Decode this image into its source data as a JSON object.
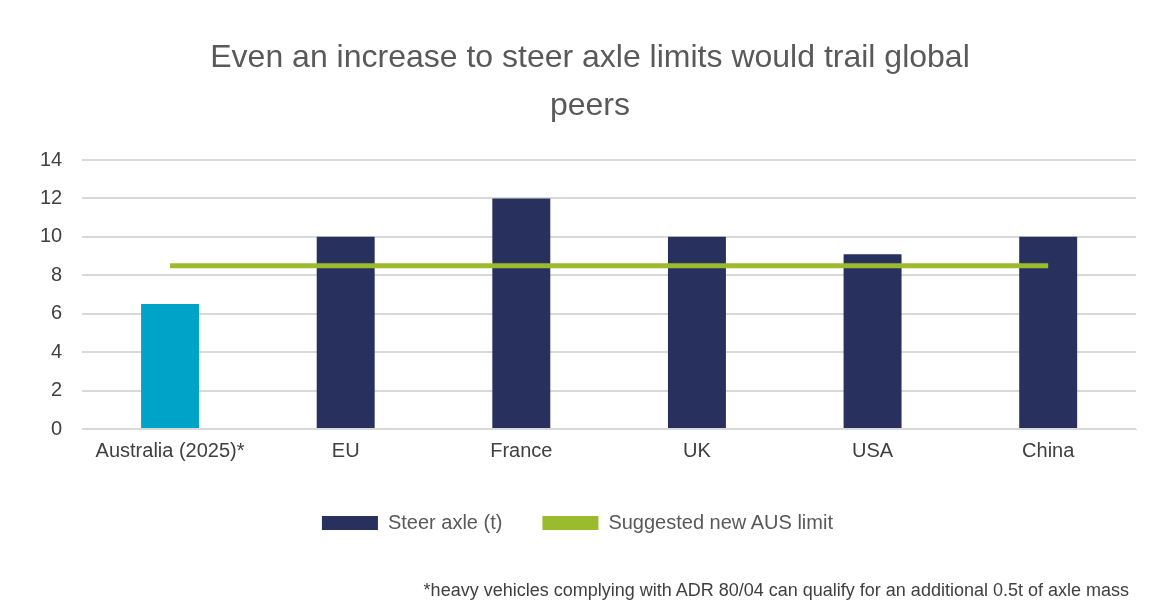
{
  "chart_data": {
    "type": "bar",
    "title": "Even an increase to steer axle limits would trail global peers",
    "categories": [
      "Australia (2025)*",
      "EU",
      "France",
      "UK",
      "USA",
      "China"
    ],
    "series": [
      {
        "name": "Steer axle (t)",
        "color": "#28305e",
        "colors": [
          "#00a3c8",
          "#28305e",
          "#28305e",
          "#28305e",
          "#28305e",
          "#28305e"
        ],
        "values": [
          6.5,
          10,
          12,
          10,
          9.1,
          10
        ]
      },
      {
        "name": "Suggested new AUS limit",
        "type": "line",
        "color": "#9bbb2e",
        "values": [
          8.5,
          8.5,
          8.5,
          8.5,
          8.5,
          8.5
        ]
      }
    ],
    "ylim": [
      0,
      14
    ],
    "yticks": [
      0,
      2,
      4,
      6,
      8,
      10,
      12,
      14
    ],
    "grid": "y",
    "legend": "bottom",
    "marker": "none",
    "annotations": [
      "*heavy vehicles complying with ADR 80/04 can qualify for an additional 0.5t of axle mass"
    ]
  }
}
